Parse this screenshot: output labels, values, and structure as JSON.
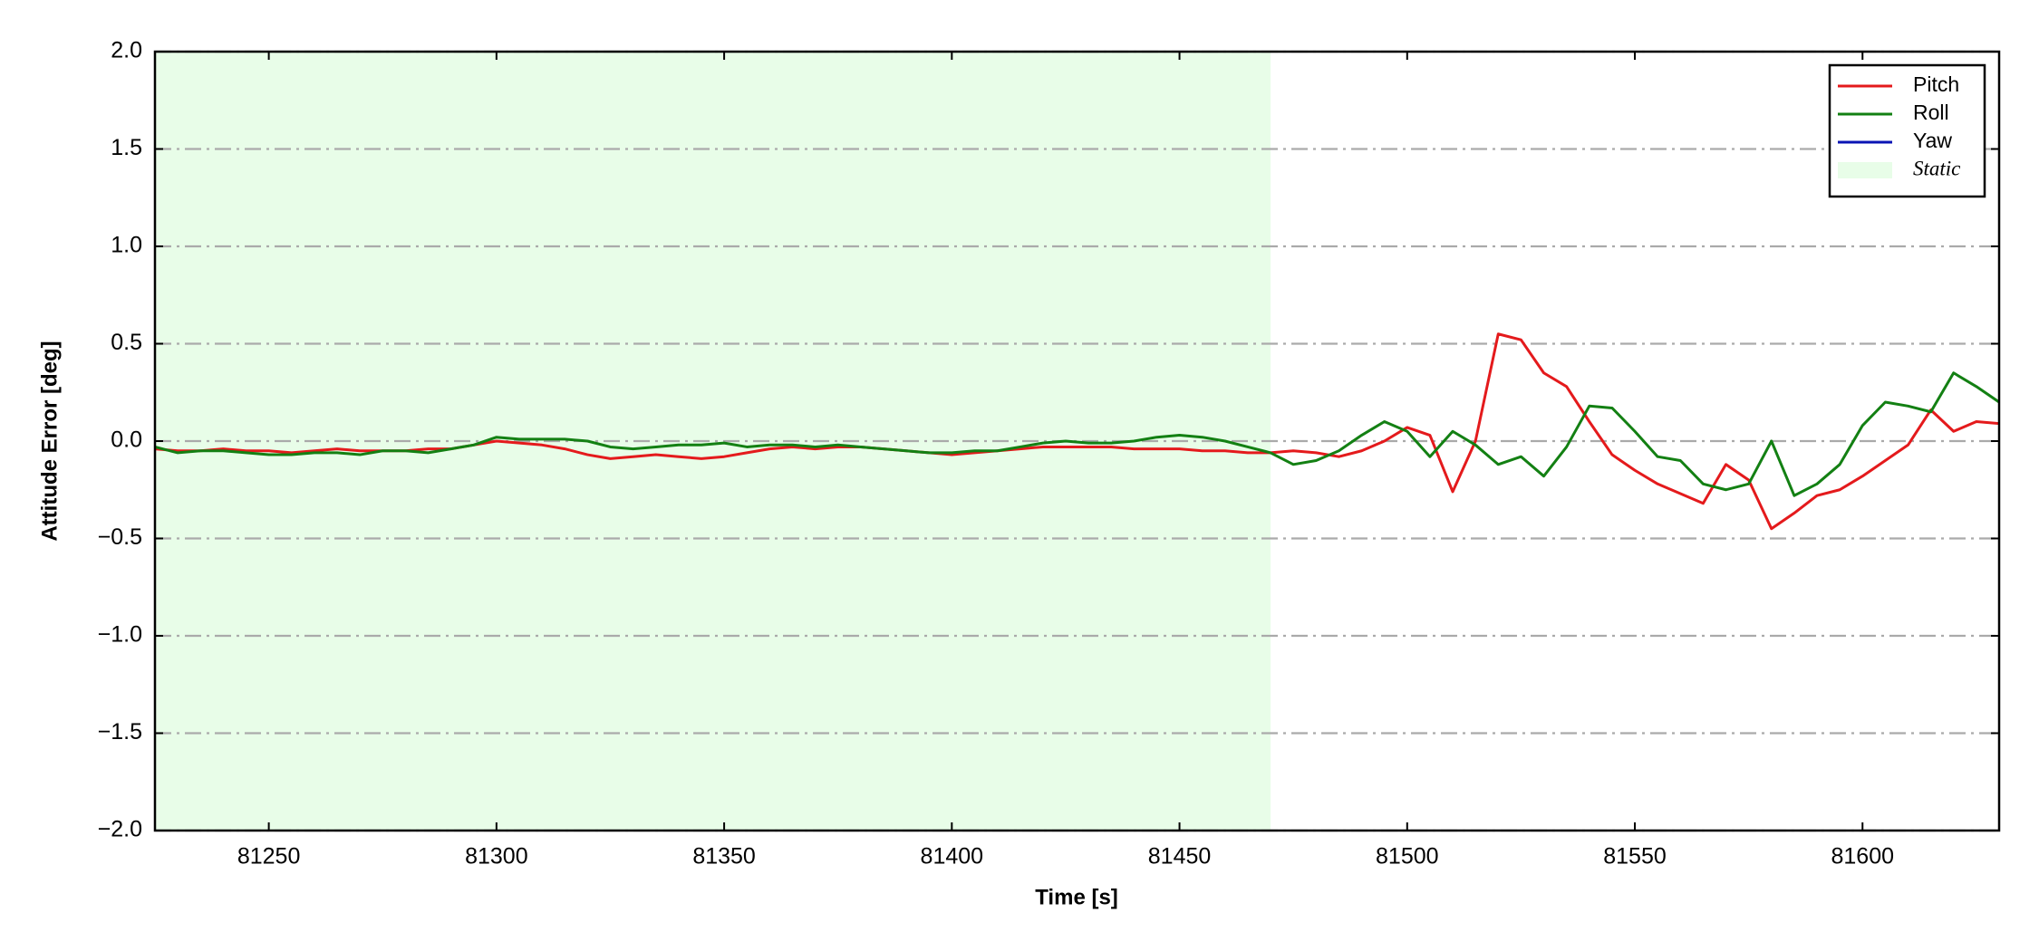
{
  "chart_data": {
    "type": "line",
    "xlabel": "Time [s]",
    "ylabel": "Attitude Error [deg]",
    "xlim": [
      81225,
      81630
    ],
    "ylim": [
      -2,
      2
    ],
    "xticks": [
      81250,
      81300,
      81350,
      81400,
      81450,
      81500,
      81550,
      81600
    ],
    "yticks": [
      {
        "value": -2,
        "label": "−2.0"
      },
      {
        "value": -1.5,
        "label": "−1.5"
      },
      {
        "value": -1,
        "label": "−1.0"
      },
      {
        "value": -0.5,
        "label": "−0.5"
      },
      {
        "value": 0,
        "label": "0.0"
      },
      0.5,
      {
        "value": 1,
        "label": "1.0"
      },
      1.5,
      {
        "value": 2,
        "label": "2.0"
      }
    ],
    "grid": true,
    "legend": "upper right",
    "static_region": {
      "name": "Static",
      "color": "#e8fde8",
      "xrange": [
        81225,
        81470
      ]
    },
    "x": [
      81225,
      81230,
      81235,
      81240,
      81245,
      81250,
      81255,
      81260,
      81265,
      81270,
      81275,
      81280,
      81285,
      81290,
      81295,
      81300,
      81305,
      81310,
      81315,
      81320,
      81325,
      81330,
      81335,
      81340,
      81345,
      81350,
      81355,
      81360,
      81365,
      81370,
      81375,
      81380,
      81385,
      81390,
      81395,
      81400,
      81405,
      81410,
      81415,
      81420,
      81425,
      81430,
      81435,
      81440,
      81445,
      81450,
      81455,
      81460,
      81465,
      81470,
      81475,
      81480,
      81485,
      81490,
      81495,
      81500,
      81505,
      81510,
      81515,
      81520,
      81525,
      81530,
      81535,
      81540,
      81545,
      81550,
      81555,
      81560,
      81565,
      81570,
      81575,
      81580,
      81585,
      81590,
      81595,
      81600,
      81605,
      81610,
      81615,
      81620,
      81625,
      81630
    ],
    "series": [
      {
        "name": "Pitch",
        "color": "#e41a1c",
        "values": [
          -0.04,
          -0.05,
          -0.05,
          -0.04,
          -0.05,
          -0.05,
          -0.06,
          -0.05,
          -0.04,
          -0.05,
          -0.05,
          -0.05,
          -0.04,
          -0.04,
          -0.02,
          0.0,
          -0.01,
          -0.02,
          -0.04,
          -0.07,
          -0.09,
          -0.08,
          -0.07,
          -0.08,
          -0.09,
          -0.08,
          -0.06,
          -0.04,
          -0.03,
          -0.04,
          -0.03,
          -0.03,
          -0.04,
          -0.05,
          -0.06,
          -0.07,
          -0.06,
          -0.05,
          -0.04,
          -0.03,
          -0.03,
          -0.03,
          -0.03,
          -0.04,
          -0.04,
          -0.04,
          -0.05,
          -0.05,
          -0.06,
          -0.06,
          -0.05,
          -0.06,
          -0.08,
          -0.05,
          0.0,
          0.07,
          0.03,
          -0.26,
          0.0,
          0.55,
          0.52,
          0.35,
          0.28,
          0.1,
          -0.07,
          -0.15,
          -0.22,
          -0.27,
          -0.32,
          -0.12,
          -0.2,
          -0.45,
          -0.37,
          -0.28,
          -0.25,
          -0.18,
          -0.1,
          -0.02,
          0.16,
          0.05,
          0.1,
          0.09
        ]
      },
      {
        "name": "Roll",
        "color": "#138013",
        "values": [
          -0.03,
          -0.06,
          -0.05,
          -0.05,
          -0.06,
          -0.07,
          -0.07,
          -0.06,
          -0.06,
          -0.07,
          -0.05,
          -0.05,
          -0.06,
          -0.04,
          -0.02,
          0.02,
          0.01,
          0.01,
          0.01,
          0.0,
          -0.03,
          -0.04,
          -0.03,
          -0.02,
          -0.02,
          -0.01,
          -0.03,
          -0.02,
          -0.02,
          -0.03,
          -0.02,
          -0.03,
          -0.04,
          -0.05,
          -0.06,
          -0.06,
          -0.05,
          -0.05,
          -0.03,
          -0.01,
          0.0,
          -0.01,
          -0.01,
          0.0,
          0.02,
          0.03,
          0.02,
          0.0,
          -0.03,
          -0.06,
          -0.12,
          -0.1,
          -0.05,
          0.03,
          0.1,
          0.05,
          -0.08,
          0.05,
          -0.02,
          -0.12,
          -0.08,
          -0.18,
          -0.03,
          0.18,
          0.17,
          0.05,
          -0.08,
          -0.1,
          -0.22,
          -0.25,
          -0.22,
          0.0,
          -0.28,
          -0.22,
          -0.12,
          0.08,
          0.2,
          0.18,
          0.15,
          0.35,
          0.28,
          0.2
        ]
      },
      {
        "name": "Yaw",
        "color": "#0a14b4",
        "values": [
          null,
          null,
          null,
          null,
          null,
          null,
          null,
          null,
          null,
          null,
          null,
          null,
          null,
          null,
          null,
          null,
          null,
          null,
          null,
          null,
          null,
          null,
          null,
          null,
          null,
          null,
          null,
          null,
          null,
          null,
          null,
          null,
          null,
          null,
          null,
          null,
          null,
          null,
          null,
          null,
          null,
          null,
          null,
          null,
          null,
          null,
          null,
          null,
          null,
          null,
          null,
          null,
          null,
          null,
          null,
          null,
          null,
          null,
          null,
          null,
          null,
          null,
          null,
          null,
          null,
          null,
          null,
          null,
          null,
          null,
          null,
          null,
          null,
          null,
          null,
          null,
          null,
          null,
          null,
          null,
          null,
          null
        ]
      }
    ]
  }
}
